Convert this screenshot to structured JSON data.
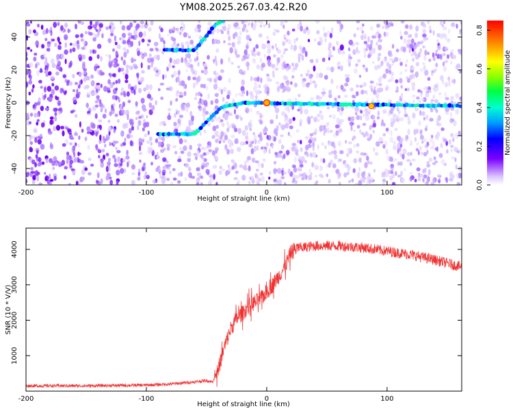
{
  "title": "YM08.2025.267.03.42.R20",
  "colors": {
    "snr_line": "#f03232",
    "axes": "#000000"
  },
  "chart_data": [
    {
      "type": "heatmap",
      "xlabel": "Height of straight line (km)",
      "ylabel": "Frequency (Hz)",
      "xlim": [
        -200,
        162
      ],
      "ylim": [
        -50,
        50
      ],
      "x_ticks": [
        -200,
        -100,
        0,
        100
      ],
      "y_ticks": [
        40,
        20,
        0,
        -20,
        -40
      ],
      "colorbar": {
        "label": "Normalized spectral amplitude",
        "range": [
          0,
          0.85
        ],
        "ticks": [
          0.0,
          0.2,
          0.4,
          0.6,
          0.8
        ],
        "colormap": "rainbow"
      },
      "features": [
        {
          "name": "main-carrier",
          "points": [
            [
              -90,
              -19
            ],
            [
              -60,
              -19
            ],
            [
              -38,
              -3
            ],
            [
              -20,
              0
            ],
            [
              162,
              -2
            ]
          ],
          "peak_at": [
            0,
            0
          ]
        },
        {
          "name": "upper-line",
          "points": [
            [
              -85,
              32
            ],
            [
              -60,
              32
            ],
            [
              -42,
              48
            ],
            [
              -35,
              50
            ]
          ]
        }
      ]
    },
    {
      "type": "line",
      "xlabel": "Height of straight line (km)",
      "ylabel": "SNR (10 * V/V)",
      "xlim": [
        -200,
        162
      ],
      "ylim": [
        0,
        4600
      ],
      "x_ticks": [
        -200,
        -100,
        0,
        100
      ],
      "y_ticks": [
        1000,
        2000,
        3000,
        4000
      ],
      "series": [
        {
          "name": "SNR",
          "x": [
            -200,
            -150,
            -100,
            -80,
            -60,
            -50,
            -45,
            -40,
            -35,
            -30,
            -25,
            -20,
            -15,
            -10,
            -5,
            0,
            5,
            10,
            15,
            20,
            25,
            30,
            40,
            50,
            60,
            80,
            100,
            120,
            140,
            162
          ],
          "values": [
            150,
            150,
            170,
            200,
            260,
            300,
            260,
            650,
            1250,
            1750,
            2050,
            2200,
            2400,
            2500,
            2600,
            2800,
            3000,
            3250,
            3500,
            3900,
            4050,
            4050,
            4100,
            4100,
            4100,
            4050,
            3950,
            3850,
            3700,
            3500
          ]
        }
      ]
    }
  ]
}
